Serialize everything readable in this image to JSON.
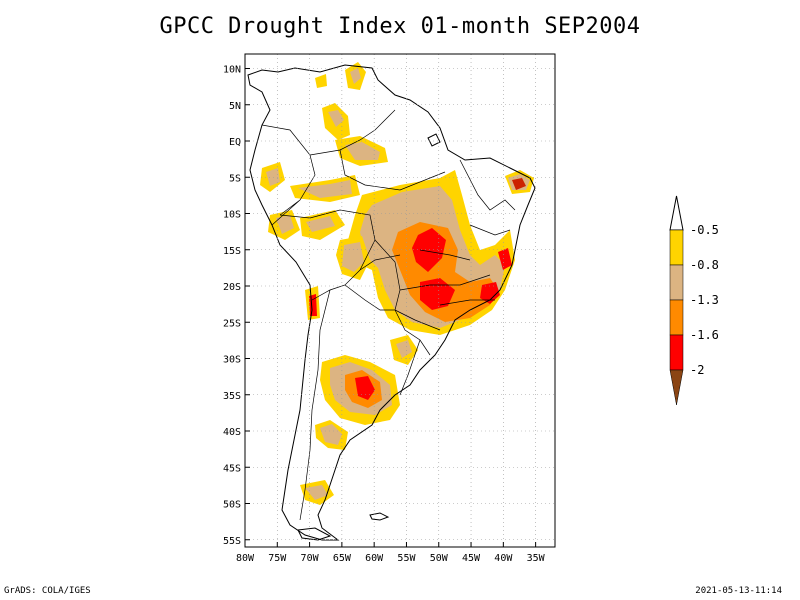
{
  "title": "GPCC Drought Index 01-month SEP2004",
  "footer": {
    "left": "GrADS: COLA/IGES",
    "right": "2021-05-13-11:14"
  },
  "map": {
    "lon_range": [
      -80,
      -32
    ],
    "lat_range": [
      -56,
      12
    ],
    "x_ticks": [
      "80W",
      "75W",
      "70W",
      "65W",
      "60W",
      "55W",
      "50W",
      "45W",
      "40W",
      "35W"
    ],
    "y_ticks": [
      "10N",
      "5N",
      "EQ",
      "5S",
      "10S",
      "15S",
      "20S",
      "25S",
      "30S",
      "35S",
      "40S",
      "45S",
      "50S",
      "55S"
    ],
    "grid": true
  },
  "legend": {
    "labels": [
      "-0.5",
      "-0.8",
      "-1.3",
      "-1.6",
      "-2"
    ],
    "colors": {
      "above_top": "#ffffff",
      "c1": "#ffd400",
      "c2": "#dcb482",
      "c3": "#ff8a00",
      "c4": "#ff0000",
      "below_bottom": "#8b4513"
    }
  }
}
